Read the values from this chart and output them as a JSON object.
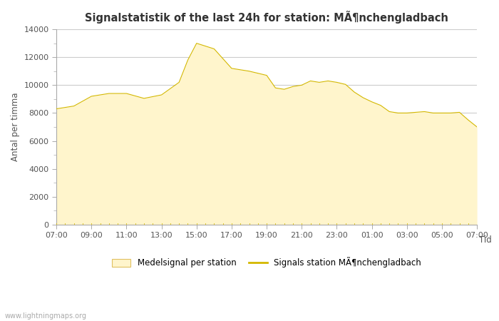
{
  "title": "Signalstatistik of the last 24h for station: MÃ¶nchengladbach",
  "xlabel": "Tid",
  "ylabel": "Antal per timma",
  "watermark": "www.lightningmaps.org",
  "x_labels": [
    "07:00",
    "09:00",
    "11:00",
    "13:00",
    "15:00",
    "17:00",
    "19:00",
    "21:00",
    "23:00",
    "01:00",
    "03:00",
    "05:00",
    "07:00"
  ],
  "x_values": [
    0,
    2,
    4,
    6,
    8,
    10,
    12,
    14,
    16,
    18,
    20,
    22,
    24
  ],
  "ylim": [
    0,
    14000
  ],
  "yticks": [
    0,
    2000,
    4000,
    6000,
    8000,
    10000,
    12000,
    14000
  ],
  "fill_color": "#FFF5CC",
  "fill_edge_color": "#E8D870",
  "line_color": "#D4B800",
  "background_color": "#ffffff",
  "grid_color": "#cccccc",
  "signal_x": [
    0,
    1,
    2,
    3,
    4,
    5,
    6,
    7,
    7.5,
    8,
    9,
    10,
    11,
    12,
    12.5,
    13,
    13.5,
    14,
    14.5,
    15,
    15.5,
    16,
    16.5,
    17,
    17.5,
    18,
    18.5,
    19,
    19.5,
    20,
    20.5,
    21,
    21.5,
    22,
    22.5,
    23,
    23.5,
    24
  ],
  "signal_y": [
    8300,
    8500,
    9200,
    9400,
    9400,
    9050,
    9300,
    10200,
    11800,
    13000,
    12600,
    11200,
    11000,
    10700,
    9800,
    9700,
    9900,
    10000,
    10300,
    10200,
    10300,
    10200,
    10050,
    9500,
    9100,
    8800,
    8550,
    8100,
    8000,
    8000,
    8050,
    8100,
    8000,
    8000,
    8000,
    8050,
    7500,
    7000
  ],
  "legend_fill_label": "Medelsignal per station",
  "legend_line_label": "Signals station MÃ¶nchengladbach"
}
